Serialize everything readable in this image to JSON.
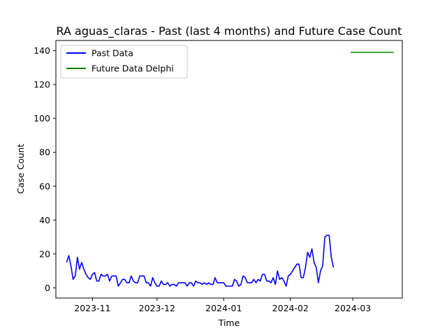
{
  "chart_data": {
    "type": "line",
    "title": "RA aguas_claras - Past (last 4 months) and Future Case Count",
    "xlabel": "Time",
    "ylabel": "Case Count",
    "xlim": [
      "2023-10-15",
      "2024-03-24"
    ],
    "ylim": [
      -6,
      146
    ],
    "x_ticks": [
      "2023-11-01",
      "2023-12-01",
      "2024-01-01",
      "2024-02-01",
      "2024-03-01"
    ],
    "x_tick_labels": [
      "2023-11",
      "2023-12",
      "2024-01",
      "2024-02",
      "2024-03"
    ],
    "y_ticks": [
      0,
      20,
      40,
      60,
      80,
      100,
      120,
      140
    ],
    "y_tick_labels": [
      "0",
      "20",
      "40",
      "60",
      "80",
      "100",
      "120",
      "140"
    ],
    "grid": false,
    "legend_position": "top-left",
    "series": [
      {
        "name": "Past Data",
        "color": "#0000ff",
        "start_date": "2023-10-20",
        "values": [
          15,
          19,
          13,
          5,
          7,
          18,
          11,
          15,
          11,
          8,
          6,
          5,
          8,
          9,
          4,
          4,
          8,
          7,
          7,
          8,
          4,
          7,
          7,
          7,
          1,
          3,
          5,
          5,
          3,
          3,
          7,
          4,
          3,
          3,
          7,
          7,
          7,
          3,
          3,
          1,
          6,
          3,
          1,
          1,
          4,
          2,
          2,
          3,
          1,
          2,
          2,
          1,
          3,
          3,
          3,
          3,
          1,
          3,
          3,
          1,
          4,
          3,
          3,
          2,
          3,
          2,
          3,
          2,
          2,
          6,
          3,
          3,
          3,
          3,
          1,
          1,
          1,
          1,
          5,
          4,
          1,
          2,
          7,
          6,
          3,
          3,
          3,
          5,
          3,
          5,
          4,
          8,
          8,
          4,
          4,
          3,
          6,
          2,
          10,
          5,
          6,
          4,
          1,
          7,
          8,
          10,
          12,
          14,
          14,
          6,
          6,
          12,
          21,
          18,
          23,
          15,
          12,
          3,
          10,
          13,
          30,
          31,
          31,
          18,
          12
        ]
      },
      {
        "name": "Future Data Delphi",
        "color": "#008000",
        "start_date": "2024-02-29",
        "values": [
          139,
          139,
          139,
          139,
          139,
          139,
          139,
          139,
          139,
          139,
          139,
          139,
          139,
          139,
          139,
          139,
          139,
          139,
          139,
          139,
          139
        ]
      }
    ]
  }
}
